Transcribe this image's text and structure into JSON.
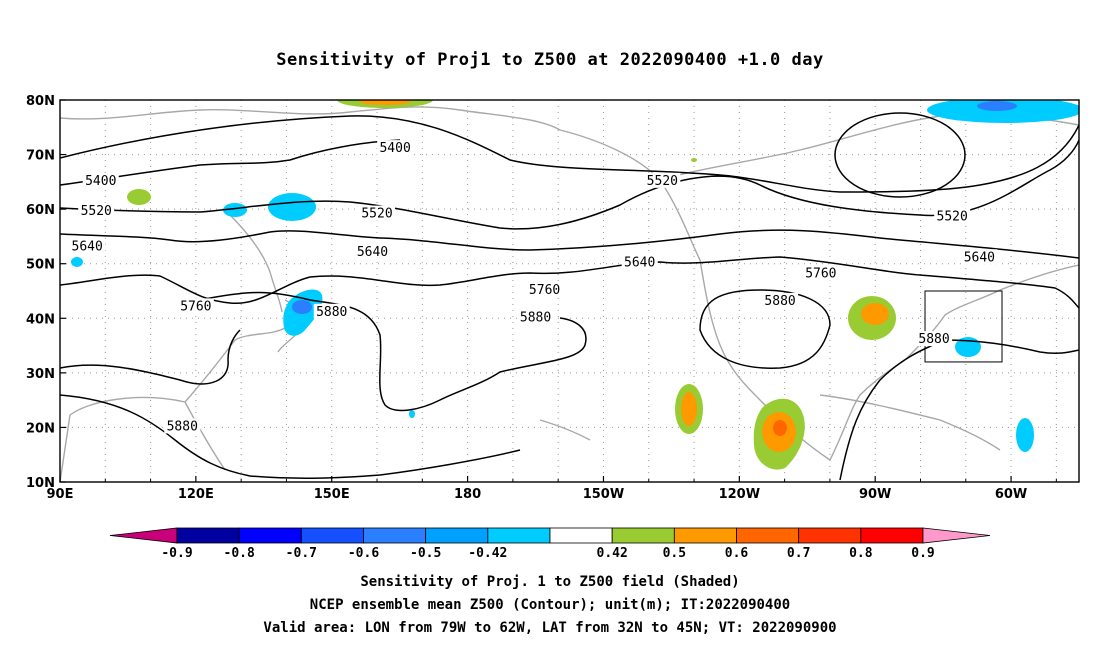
{
  "title": "Sensitivity of Proj1 to Z500 at 2022090400 +1.0 day",
  "captions": [
    "Sensitivity of Proj. 1 to Z500 field (Shaded)",
    "NCEP ensemble mean Z500 (Contour); unit(m); IT:2022090400",
    "Valid area: LON from 79W to 62W, LAT from 32N to 45N; VT: 2022090900"
  ],
  "axes": {
    "x_ticks": [
      "90E",
      "120E",
      "150E",
      "180",
      "150W",
      "120W",
      "90W",
      "60W"
    ],
    "y_ticks": [
      "80N",
      "70N",
      "60N",
      "50N",
      "40N",
      "30N",
      "20N",
      "10N"
    ],
    "lon_range_deg_east": [
      90,
      315
    ],
    "lat_range": [
      10,
      80
    ],
    "grid": "dotted"
  },
  "colorbar": {
    "labels": [
      "-0.9",
      "-0.8",
      "-0.7",
      "-0.6",
      "-0.5",
      "-0.42",
      "0.42",
      "0.5",
      "0.6",
      "0.7",
      "0.8",
      "0.9"
    ],
    "colors": [
      "#c8007a",
      "#0000a0",
      "#0000ff",
      "#1450ff",
      "#2a7fff",
      "#00a0ff",
      "#00ccff",
      "#ffffff",
      "#99cc33",
      "#ff9900",
      "#ff6600",
      "#ff3300",
      "#ff0000",
      "#ff99cc"
    ]
  },
  "valid_area": {
    "lon_west": 79,
    "lon_east": 62,
    "lat_south": 32,
    "lat_north": 45
  },
  "contour_labels": [
    {
      "text": "5400",
      "lon": 164,
      "lat": 71
    },
    {
      "text": "5400",
      "lon": 99,
      "lat": 65
    },
    {
      "text": "5520",
      "lon": 98,
      "lat": 59.5
    },
    {
      "text": "5520",
      "lon": 160,
      "lat": 59
    },
    {
      "text": "5520",
      "lon": 223,
      "lat": 65
    },
    {
      "text": "5520",
      "lon": 287,
      "lat": 58.5
    },
    {
      "text": "5640",
      "lon": 96,
      "lat": 53
    },
    {
      "text": "5640",
      "lon": 159,
      "lat": 52
    },
    {
      "text": "5640",
      "lon": 218,
      "lat": 50
    },
    {
      "text": "5640",
      "lon": 293,
      "lat": 51
    },
    {
      "text": "5760",
      "lon": 120,
      "lat": 42
    },
    {
      "text": "5760",
      "lon": 197,
      "lat": 45
    },
    {
      "text": "5760",
      "lon": 258,
      "lat": 48
    },
    {
      "text": "5880",
      "lon": 150,
      "lat": 41
    },
    {
      "text": "5880",
      "lon": 195,
      "lat": 40
    },
    {
      "text": "5880",
      "lon": 249,
      "lat": 43
    },
    {
      "text": "5880",
      "lon": 283,
      "lat": 36
    },
    {
      "text": "5880",
      "lon": 117,
      "lat": 20
    }
  ]
}
